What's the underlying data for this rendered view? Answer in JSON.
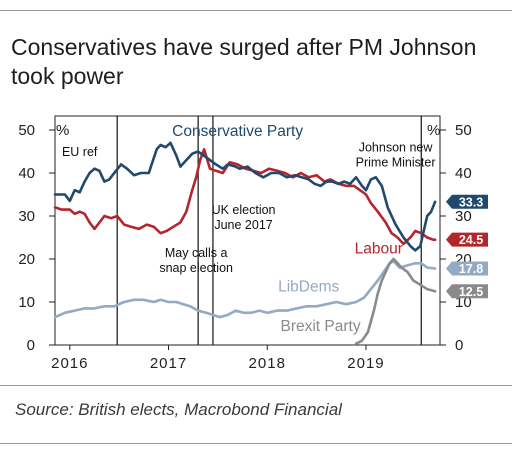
{
  "title": "Conservatives have surged after PM Johnson took power",
  "source": "Source: British elects, Macrobond Financial",
  "colors": {
    "conservative": "#1f4a6e",
    "labour": "#b3262b",
    "libdems": "#93a9c4",
    "brexit": "#8a8a8a"
  },
  "chart_data": {
    "type": "line",
    "ylabel_left": "%",
    "ylabel_right": "%",
    "ylim": [
      0,
      50
    ],
    "yticks": [
      0,
      10,
      20,
      30,
      40,
      50
    ],
    "xlim": [
      2015.85,
      2019.75
    ],
    "xticks": [
      {
        "label": "2016",
        "x": 2016.0
      },
      {
        "label": "2017",
        "x": 2017.0
      },
      {
        "label": "2018",
        "x": 2018.0
      },
      {
        "label": "2019",
        "x": 2019.0
      }
    ],
    "events": [
      {
        "label_lines": [
          "EU ref"
        ],
        "x": 2016.48,
        "label_x": 2016.1,
        "label_y": 44
      },
      {
        "label_lines": [
          "May calls a",
          "snap election"
        ],
        "x": 2017.3,
        "label_x": 2017.28,
        "label_y": 20.5
      },
      {
        "label_lines": [
          "UK election",
          "June 2017"
        ],
        "x": 2017.45,
        "label_x": 2017.76,
        "label_y": 30.5
      },
      {
        "label_lines": [
          "Johnson new",
          "Prime Minister"
        ],
        "x": 2019.56,
        "label_x": 2019.3,
        "label_y": 45
      }
    ],
    "series": [
      {
        "name": "Conservative Party",
        "key": "conservative",
        "end_value": "33.3",
        "label_x": 2017.7,
        "label_y": 48.6,
        "points": [
          [
            2015.85,
            35
          ],
          [
            2015.95,
            35
          ],
          [
            2016.0,
            33.5
          ],
          [
            2016.05,
            36
          ],
          [
            2016.1,
            35.5
          ],
          [
            2016.15,
            38
          ],
          [
            2016.2,
            40
          ],
          [
            2016.25,
            41
          ],
          [
            2016.3,
            40.5
          ],
          [
            2016.35,
            38
          ],
          [
            2016.4,
            38.5
          ],
          [
            2016.45,
            40
          ],
          [
            2016.52,
            42
          ],
          [
            2016.58,
            41
          ],
          [
            2016.65,
            39.5
          ],
          [
            2016.72,
            40
          ],
          [
            2016.8,
            40
          ],
          [
            2016.88,
            45.5
          ],
          [
            2016.92,
            46.5
          ],
          [
            2016.97,
            46
          ],
          [
            2017.02,
            47
          ],
          [
            2017.08,
            44
          ],
          [
            2017.12,
            41.5
          ],
          [
            2017.18,
            43
          ],
          [
            2017.24,
            44.5
          ],
          [
            2017.3,
            45
          ],
          [
            2017.36,
            44
          ],
          [
            2017.42,
            43
          ],
          [
            2017.48,
            42
          ],
          [
            2017.55,
            41
          ],
          [
            2017.6,
            42
          ],
          [
            2017.68,
            41.5
          ],
          [
            2017.72,
            41
          ],
          [
            2017.8,
            41.5
          ],
          [
            2017.88,
            40
          ],
          [
            2017.96,
            39
          ],
          [
            2018.04,
            40
          ],
          [
            2018.12,
            40
          ],
          [
            2018.2,
            39
          ],
          [
            2018.28,
            39.5
          ],
          [
            2018.35,
            39
          ],
          [
            2018.42,
            38.5
          ],
          [
            2018.48,
            37.5
          ],
          [
            2018.54,
            37
          ],
          [
            2018.6,
            38
          ],
          [
            2018.66,
            38
          ],
          [
            2018.72,
            37.5
          ],
          [
            2018.78,
            38
          ],
          [
            2018.84,
            37.5
          ],
          [
            2018.9,
            39
          ],
          [
            2018.96,
            37
          ],
          [
            2019.0,
            36
          ],
          [
            2019.05,
            38.5
          ],
          [
            2019.1,
            39
          ],
          [
            2019.16,
            37
          ],
          [
            2019.22,
            32
          ],
          [
            2019.3,
            28
          ],
          [
            2019.38,
            25
          ],
          [
            2019.45,
            23
          ],
          [
            2019.5,
            22
          ],
          [
            2019.55,
            23
          ],
          [
            2019.58,
            26
          ],
          [
            2019.62,
            30
          ],
          [
            2019.66,
            31
          ],
          [
            2019.7,
            33.3
          ]
        ]
      },
      {
        "name": "Labour",
        "key": "labour",
        "end_value": "24.5",
        "label_x": 2019.13,
        "label_y": 21.3,
        "points": [
          [
            2015.85,
            32
          ],
          [
            2015.92,
            31.5
          ],
          [
            2016.0,
            31.5
          ],
          [
            2016.05,
            30.5
          ],
          [
            2016.1,
            31
          ],
          [
            2016.15,
            30.5
          ],
          [
            2016.2,
            28.5
          ],
          [
            2016.25,
            27
          ],
          [
            2016.3,
            28.5
          ],
          [
            2016.35,
            30
          ],
          [
            2016.42,
            29.5
          ],
          [
            2016.48,
            30
          ],
          [
            2016.55,
            28
          ],
          [
            2016.62,
            27.5
          ],
          [
            2016.7,
            27
          ],
          [
            2016.78,
            28
          ],
          [
            2016.85,
            27.5
          ],
          [
            2016.92,
            26
          ],
          [
            2016.98,
            26.5
          ],
          [
            2017.05,
            27.5
          ],
          [
            2017.12,
            28.5
          ],
          [
            2017.18,
            31
          ],
          [
            2017.24,
            36
          ],
          [
            2017.28,
            39
          ],
          [
            2017.32,
            43
          ],
          [
            2017.36,
            45.5
          ],
          [
            2017.42,
            41
          ],
          [
            2017.48,
            40.5
          ],
          [
            2017.55,
            40
          ],
          [
            2017.62,
            42.5
          ],
          [
            2017.7,
            42
          ],
          [
            2017.78,
            41
          ],
          [
            2017.86,
            40.5
          ],
          [
            2017.94,
            40
          ],
          [
            2018.02,
            41
          ],
          [
            2018.1,
            40.5
          ],
          [
            2018.18,
            40
          ],
          [
            2018.26,
            39
          ],
          [
            2018.34,
            40
          ],
          [
            2018.42,
            39
          ],
          [
            2018.5,
            39.5
          ],
          [
            2018.58,
            38
          ],
          [
            2018.64,
            38.5
          ],
          [
            2018.72,
            37.5
          ],
          [
            2018.8,
            37
          ],
          [
            2018.88,
            37
          ],
          [
            2018.94,
            36
          ],
          [
            2019.0,
            35
          ],
          [
            2019.05,
            33
          ],
          [
            2019.12,
            31
          ],
          [
            2019.2,
            28.5
          ],
          [
            2019.26,
            26
          ],
          [
            2019.32,
            25
          ],
          [
            2019.38,
            23.5
          ],
          [
            2019.45,
            25
          ],
          [
            2019.5,
            26.5
          ],
          [
            2019.56,
            26
          ],
          [
            2019.62,
            25
          ],
          [
            2019.68,
            24.5
          ],
          [
            2019.7,
            24.5
          ]
        ]
      },
      {
        "name": "LibDems",
        "key": "libdems",
        "end_value": "17.8",
        "label_x": 2018.42,
        "label_y": 12.4,
        "points": [
          [
            2015.85,
            6.5
          ],
          [
            2015.95,
            7.5
          ],
          [
            2016.05,
            8
          ],
          [
            2016.15,
            8.5
          ],
          [
            2016.25,
            8.5
          ],
          [
            2016.35,
            9
          ],
          [
            2016.45,
            9
          ],
          [
            2016.55,
            10
          ],
          [
            2016.65,
            10.5
          ],
          [
            2016.75,
            10.5
          ],
          [
            2016.85,
            10
          ],
          [
            2016.92,
            10.5
          ],
          [
            2017.0,
            10
          ],
          [
            2017.08,
            10
          ],
          [
            2017.15,
            9.5
          ],
          [
            2017.22,
            9
          ],
          [
            2017.3,
            8
          ],
          [
            2017.38,
            7.5
          ],
          [
            2017.45,
            7
          ],
          [
            2017.52,
            6.5
          ],
          [
            2017.6,
            7
          ],
          [
            2017.68,
            8
          ],
          [
            2017.76,
            7.5
          ],
          [
            2017.84,
            7.5
          ],
          [
            2017.92,
            8
          ],
          [
            2018.0,
            7.5
          ],
          [
            2018.1,
            8
          ],
          [
            2018.2,
            8
          ],
          [
            2018.3,
            8.5
          ],
          [
            2018.4,
            9
          ],
          [
            2018.5,
            9
          ],
          [
            2018.6,
            9.5
          ],
          [
            2018.7,
            10
          ],
          [
            2018.8,
            9.5
          ],
          [
            2018.9,
            10
          ],
          [
            2018.98,
            11
          ],
          [
            2019.05,
            13
          ],
          [
            2019.12,
            15
          ],
          [
            2019.18,
            17
          ],
          [
            2019.24,
            19
          ],
          [
            2019.28,
            19.5
          ],
          [
            2019.34,
            18
          ],
          [
            2019.42,
            18.5
          ],
          [
            2019.5,
            19
          ],
          [
            2019.56,
            19
          ],
          [
            2019.62,
            18
          ],
          [
            2019.7,
            17.8
          ]
        ]
      },
      {
        "name": "Brexit Party",
        "key": "brexit",
        "end_value": "12.5",
        "label_x": 2018.54,
        "label_y": 3.2,
        "points": [
          [
            2018.9,
            0.3
          ],
          [
            2018.96,
            1
          ],
          [
            2019.02,
            3
          ],
          [
            2019.08,
            8
          ],
          [
            2019.12,
            12
          ],
          [
            2019.16,
            15
          ],
          [
            2019.2,
            17
          ],
          [
            2019.24,
            19
          ],
          [
            2019.28,
            20
          ],
          [
            2019.32,
            19
          ],
          [
            2019.36,
            18
          ],
          [
            2019.42,
            17
          ],
          [
            2019.48,
            15
          ],
          [
            2019.55,
            14
          ],
          [
            2019.62,
            13
          ],
          [
            2019.7,
            12.5
          ]
        ]
      }
    ]
  }
}
